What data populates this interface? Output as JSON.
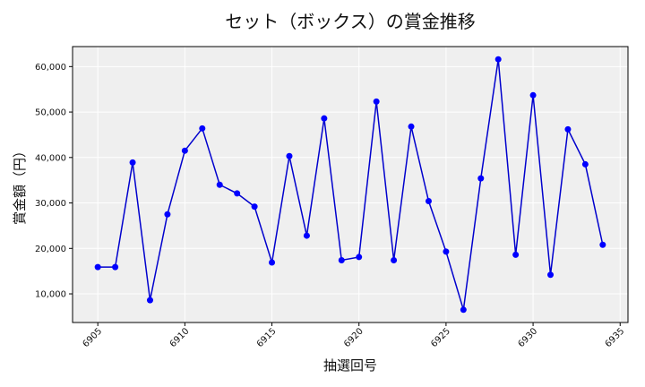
{
  "chart_data": {
    "type": "line",
    "title": "セット（ボックス）の賞金推移",
    "xlabel": "抽選回号",
    "ylabel": "賞金額（円）",
    "x": [
      6905,
      6906,
      6907,
      6908,
      6909,
      6910,
      6911,
      6912,
      6913,
      6914,
      6915,
      6916,
      6917,
      6918,
      6919,
      6920,
      6921,
      6922,
      6923,
      6924,
      6925,
      6926,
      6927,
      6928,
      6929,
      6930,
      6931,
      6932,
      6933,
      6934
    ],
    "series": [
      {
        "values": [
          15900,
          15900,
          38900,
          8600,
          27500,
          41500,
          46400,
          34000,
          32100,
          29200,
          16900,
          40300,
          22800,
          48600,
          17400,
          18100,
          52300,
          17400,
          46800,
          30400,
          19300,
          6500,
          35400,
          61600,
          18600,
          53700,
          14200,
          46200,
          38500,
          20800
        ]
      }
    ],
    "xticks": [
      6905,
      6910,
      6915,
      6920,
      6925,
      6930,
      6935
    ],
    "yticks": [
      10000,
      20000,
      30000,
      40000,
      50000,
      60000
    ],
    "ytick_labels": [
      "10,000",
      "20,000",
      "30,000",
      "40,000",
      "50,000",
      "60,000"
    ],
    "xlim": [
      6903.55,
      6935.45
    ],
    "ylim": [
      3700,
      64400
    ],
    "grid": true,
    "colors": {
      "line": "#0000cd",
      "marker": "#0000ff",
      "plot_bg": "#efefef",
      "grid": "#ffffff"
    }
  }
}
